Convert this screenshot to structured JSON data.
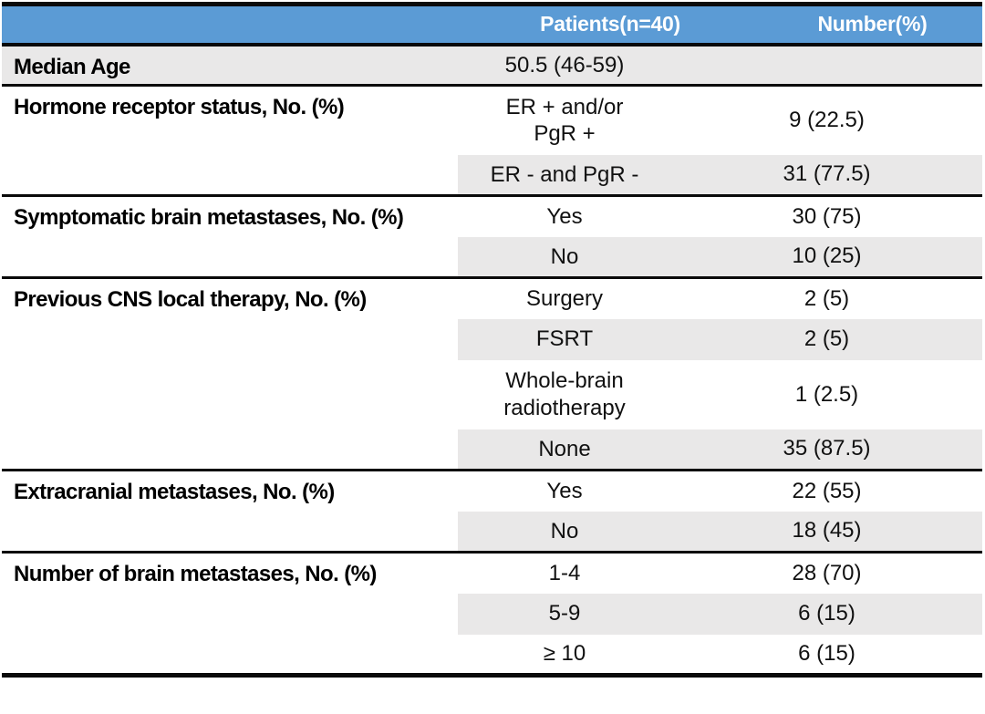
{
  "table": {
    "columns": {
      "patients": "Patients(n=40)",
      "number": "Number(%)"
    },
    "groups": [
      {
        "label": "Median Age",
        "rows": [
          {
            "patients": "50.5 (46-59)",
            "number": ""
          }
        ]
      },
      {
        "label": "Hormone receptor status, No. (%)",
        "rows": [
          {
            "patients": "ER + and/or\nPgR +",
            "number": "9 (22.5)"
          },
          {
            "patients": "ER - and PgR -",
            "number": "31 (77.5)"
          }
        ]
      },
      {
        "label": "Symptomatic brain metastases, No. (%)",
        "rows": [
          {
            "patients": "Yes",
            "number": "30 (75)"
          },
          {
            "patients": "No",
            "number": "10 (25)"
          }
        ]
      },
      {
        "label": "Previous CNS local therapy, No. (%)",
        "rows": [
          {
            "patients": "Surgery",
            "number": "2 (5)"
          },
          {
            "patients": "FSRT",
            "number": "2 (5)"
          },
          {
            "patients": "Whole-brain\nradiotherapy",
            "number": "1 (2.5)"
          },
          {
            "patients": "None",
            "number": "35 (87.5)"
          }
        ]
      },
      {
        "label": "Extracranial metastases, No. (%)",
        "rows": [
          {
            "patients": "Yes",
            "number": "22 (55)"
          },
          {
            "patients": "No",
            "number": "18 (45)"
          }
        ]
      },
      {
        "label": "Number of brain metastases, No. (%)",
        "rows": [
          {
            "patients": "1-4",
            "number": "28 (70)"
          },
          {
            "patients": "5-9",
            "number": "6 (15)"
          },
          {
            "patients": "≥ 10",
            "number": "6 (15)"
          }
        ]
      }
    ],
    "colors": {
      "header_bg": "#5B9BD5",
      "header_text": "#FFFFFF",
      "band": "#E9E8E8",
      "border": "#0A0A0A"
    }
  }
}
